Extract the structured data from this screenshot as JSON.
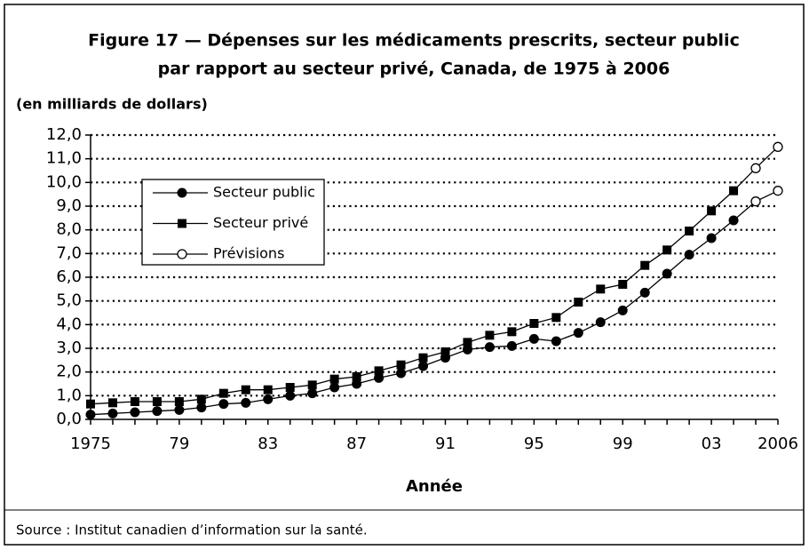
{
  "chart_data": {
    "type": "line",
    "title": [
      "Figure 17 — Dépenses sur les médicaments prescrits, secteur public",
      "par rapport au secteur privé, Canada, de 1975 à 2006"
    ],
    "y_label": "(en milliards de dollars)",
    "x_label": "Année",
    "source": "Source : Institut canadien d’information sur la santé.",
    "x": [
      1975,
      1976,
      1977,
      1978,
      1979,
      1980,
      1981,
      1982,
      1983,
      1984,
      1985,
      1986,
      1987,
      1988,
      1989,
      1990,
      1991,
      1992,
      1993,
      1994,
      1995,
      1996,
      1997,
      1998,
      1999,
      2000,
      2001,
      2002,
      2003,
      2004,
      2005,
      2006
    ],
    "series": [
      {
        "name": "Secteur public",
        "color": "#000000",
        "marker": "circle",
        "values": [
          0.2,
          0.25,
          0.3,
          0.35,
          0.4,
          0.5,
          0.65,
          0.7,
          0.85,
          1.0,
          1.1,
          1.35,
          1.5,
          1.75,
          1.95,
          2.25,
          2.6,
          2.95,
          3.05,
          3.1,
          3.4,
          3.3,
          3.65,
          4.1,
          4.6,
          5.35,
          6.15,
          6.95,
          7.65,
          8.4,
          null,
          null
        ]
      },
      {
        "name": "Secteur privé",
        "color": "#000000",
        "marker": "square",
        "values": [
          0.65,
          0.7,
          0.75,
          0.75,
          0.75,
          0.85,
          1.1,
          1.25,
          1.25,
          1.35,
          1.45,
          1.7,
          1.8,
          2.05,
          2.3,
          2.6,
          2.85,
          3.25,
          3.55,
          3.7,
          4.05,
          4.3,
          4.95,
          5.5,
          5.7,
          6.5,
          7.15,
          7.95,
          8.8,
          9.65,
          null,
          null
        ]
      },
      {
        "name": "Prévisions",
        "color": "#000000",
        "marker": "open-circle",
        "values": [
          [
            null,
            null,
            null,
            null,
            null,
            null,
            null,
            null,
            null,
            null,
            null,
            null,
            null,
            null,
            null,
            null,
            null,
            null,
            null,
            null,
            null,
            null,
            null,
            null,
            null,
            null,
            null,
            null,
            null,
            null,
            9.2,
            9.65
          ],
          [
            null,
            null,
            null,
            null,
            null,
            null,
            null,
            null,
            null,
            null,
            null,
            null,
            null,
            null,
            null,
            null,
            null,
            null,
            null,
            null,
            null,
            null,
            null,
            null,
            null,
            null,
            null,
            null,
            null,
            null,
            10.6,
            11.5
          ]
        ]
      }
    ],
    "xlim": [
      1975,
      2006
    ],
    "xticks": [
      1975,
      {
        "value": 1979,
        "label": "79"
      },
      {
        "value": 1983,
        "label": "83"
      },
      {
        "value": 1987,
        "label": "87"
      },
      {
        "value": 1991,
        "label": "91"
      },
      {
        "value": 1995,
        "label": "95"
      },
      {
        "value": 1999,
        "label": "99"
      },
      {
        "value": 2003,
        "label": "03"
      },
      2006
    ],
    "ylim": [
      0,
      12
    ],
    "yticks": [
      {
        "value": 0,
        "label": "0,0"
      },
      {
        "value": 1,
        "label": "1,0"
      },
      {
        "value": 2,
        "label": "2,0"
      },
      {
        "value": 3,
        "label": "3,0"
      },
      {
        "value": 4,
        "label": "4,0"
      },
      {
        "value": 5,
        "label": "5,0"
      },
      {
        "value": 6,
        "label": "6,0"
      },
      {
        "value": 7,
        "label": "7,0"
      },
      {
        "value": 8,
        "label": "8,0"
      },
      {
        "value": 9,
        "label": "9,0"
      },
      {
        "value": 10,
        "label": "10,0"
      },
      {
        "value": 11,
        "label": "11,0"
      },
      {
        "value": 12,
        "label": "12,0"
      }
    ],
    "grid": true,
    "legend": "upper left"
  }
}
